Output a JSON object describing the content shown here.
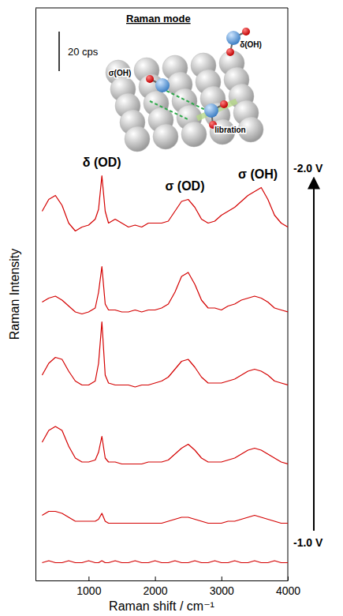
{
  "chart_data": {
    "type": "line",
    "x_label": "Raman shift / cm⁻¹",
    "y_label": "Raman Intensity",
    "xlim": [
      200,
      4000
    ],
    "xticks": [
      1000,
      2000,
      3000,
      4000
    ],
    "ylim": [
      0,
      290
    ],
    "yticks": [],
    "tick_labels": "x",
    "scale_bar": {
      "value": 20,
      "label": "20 cps"
    },
    "inset_title": "Raman mode",
    "inset_labels": [
      "σ(OH)",
      "δ(OH)",
      "libration"
    ],
    "annotations": [
      {
        "text": "δ (OD)",
        "x": 1200
      },
      {
        "text": "σ (OD)",
        "x": 2450
      },
      {
        "text": "σ (OH)",
        "x": 3550
      }
    ],
    "x": [
      300,
      400,
      500,
      600,
      700,
      800,
      900,
      1000,
      1100,
      1150,
      1200,
      1250,
      1300,
      1400,
      1500,
      1600,
      1700,
      1800,
      1900,
      2000,
      2100,
      2200,
      2300,
      2400,
      2500,
      2600,
      2700,
      2800,
      2900,
      3000,
      3100,
      3200,
      3300,
      3400,
      3500,
      3600,
      3700,
      3800,
      3900,
      4000
    ],
    "series": [
      {
        "name": "-2.0 V",
        "color": "#d40000",
        "values": [
          187,
          193,
          195,
          190,
          181,
          177,
          179,
          180,
          183,
          188,
          205,
          187,
          181,
          183,
          181,
          179,
          180,
          179,
          181,
          181,
          181,
          182,
          187,
          192,
          193,
          189,
          183,
          181,
          182,
          185,
          187,
          189,
          192,
          195,
          197,
          199,
          193,
          185,
          181,
          179
        ]
      },
      {
        "color": "#d40000",
        "values": [
          141,
          143,
          144,
          142,
          139,
          136,
          135,
          136,
          138,
          146,
          159,
          140,
          137,
          137,
          136,
          136,
          137,
          136,
          137,
          137,
          138,
          140,
          146,
          154,
          156,
          150,
          142,
          138,
          138,
          137,
          139,
          140,
          142,
          143,
          144,
          143,
          141,
          138,
          137,
          136
        ]
      },
      {
        "color": "#d40000",
        "values": [
          104,
          110,
          113,
          112,
          106,
          101,
          99,
          99,
          101,
          110,
          131,
          104,
          100,
          99,
          99,
          99,
          98,
          99,
          99,
          100,
          101,
          103,
          107,
          111,
          112,
          108,
          103,
          100,
          100,
          100,
          101,
          102,
          104,
          106,
          107,
          106,
          104,
          101,
          100,
          99
        ]
      },
      {
        "color": "#d40000",
        "values": [
          70,
          76,
          78,
          76,
          68,
          62,
          60,
          60,
          61,
          65,
          73,
          62,
          60,
          60,
          59,
          59,
          59,
          59,
          60,
          60,
          60,
          61,
          64,
          67,
          69,
          66,
          62,
          60,
          60,
          60,
          61,
          62,
          64,
          66,
          67,
          66,
          64,
          62,
          60,
          59
        ]
      },
      {
        "color": "#d40000",
        "values": [
          33,
          35,
          35,
          34,
          32,
          30,
          30,
          30,
          30,
          31,
          34,
          30,
          29,
          29,
          29,
          29,
          29,
          29,
          29,
          29,
          29,
          30,
          31,
          32,
          32,
          31,
          30,
          29,
          29,
          29,
          30,
          30,
          31,
          32,
          33,
          32,
          31,
          30,
          29,
          29
        ]
      },
      {
        "name": "-1.0 V",
        "color": "#d40000",
        "values": [
          9,
          10,
          9,
          9,
          10,
          9,
          9,
          10,
          9,
          9,
          10,
          9,
          9,
          10,
          9,
          9,
          10,
          9,
          9,
          10,
          9,
          9,
          10,
          9,
          9,
          10,
          9,
          9,
          10,
          9,
          9,
          10,
          9,
          9,
          10,
          9,
          9,
          10,
          9,
          9
        ]
      }
    ]
  }
}
